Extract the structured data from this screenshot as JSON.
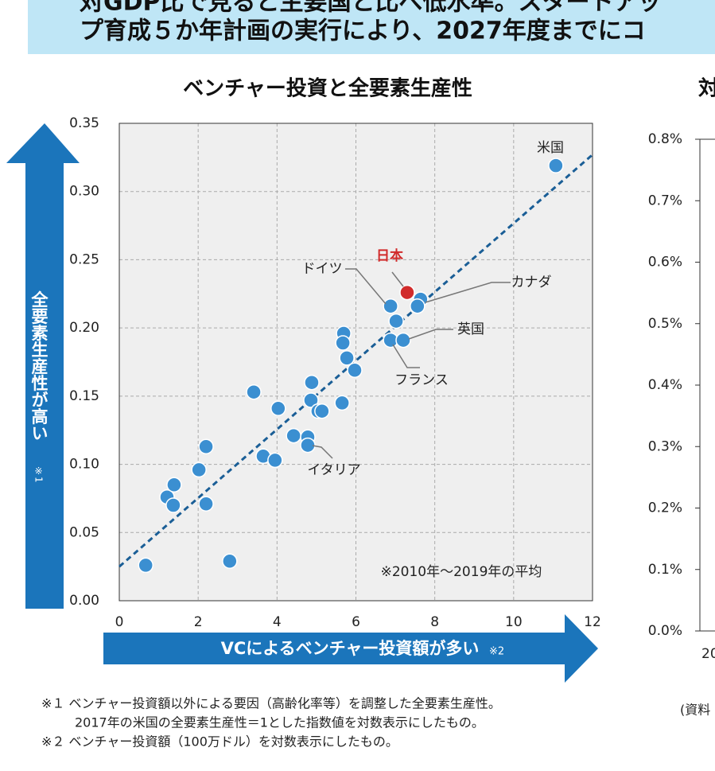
{
  "banner": {
    "lines": [
      "対GDP比で見ると主要国と比べ低水準。スタートアッ",
      "プ育成５か年計画の実行により、2027年度までにコ"
    ]
  },
  "chart_data": [
    {
      "type": "scatter",
      "title": "ベンチャー投資と全要素生産性",
      "y_label": "全要素生産性が高い",
      "y_label_note": "※1",
      "x_label": "VCによるベンチャー投資額が多い",
      "x_label_note": "※2",
      "annotation": "※2010年～2019年の平均",
      "xlim": [
        0,
        12
      ],
      "xticks": [
        0,
        2,
        4,
        6,
        8,
        10,
        12
      ],
      "ylim": [
        0,
        0.35
      ],
      "yticks": [
        {
          "value": 0,
          "label": "0.00"
        },
        {
          "value": 0.05,
          "label": "0.05"
        },
        {
          "value": 0.1,
          "label": "0.10"
        },
        {
          "value": 0.15,
          "label": "0.15"
        },
        {
          "value": 0.2,
          "label": "0.20"
        },
        {
          "value": 0.25,
          "label": "0.25"
        },
        {
          "value": 0.3,
          "label": "0.30"
        },
        {
          "value": 0.35,
          "label": "0.35"
        }
      ],
      "grid": true,
      "trend": {
        "x": [
          0,
          12
        ],
        "values": [
          0.025,
          0.327
        ],
        "color": "#1a5e96"
      },
      "series": [
        {
          "name": "主要国",
          "color": "#3b8fd1",
          "x": [
            0.67,
            2.8,
            1.21,
            1.39,
            1.37,
            2.2,
            2.2,
            2.02,
            3.41,
            3.65,
            3.95,
            4.03,
            4.42,
            4.78,
            4.78,
            4.88,
            4.86,
            5.04,
            5.14,
            5.65,
            5.69,
            5.67,
            5.77,
            5.97,
            6.88,
            7.02,
            6.88,
            7.2,
            7.64,
            7.56,
            11.07
          ],
          "values": [
            0.026,
            0.029,
            0.076,
            0.085,
            0.07,
            0.071,
            0.113,
            0.096,
            0.153,
            0.106,
            0.103,
            0.141,
            0.121,
            0.12,
            0.114,
            0.16,
            0.147,
            0.139,
            0.139,
            0.145,
            0.196,
            0.189,
            0.178,
            0.169,
            0.216,
            0.205,
            0.191,
            0.191,
            0.221,
            0.216,
            0.319
          ],
          "labels": [
            null,
            null,
            null,
            null,
            null,
            null,
            null,
            null,
            null,
            null,
            null,
            null,
            null,
            null,
            "イタリア",
            null,
            null,
            null,
            null,
            null,
            null,
            null,
            null,
            null,
            "ドイツ",
            null,
            "フランス",
            "英国",
            "カナダ",
            null,
            "米国"
          ]
        },
        {
          "name": "日本",
          "color": "#d12b2b",
          "x": [
            7.3
          ],
          "values": [
            0.226
          ]
        }
      ]
    },
    {
      "type": "line",
      "title": "対",
      "ylim": [
        0,
        0.8
      ],
      "yticks": [
        {
          "value": 0,
          "label": "0.0%"
        },
        {
          "value": 0.1,
          "label": "0.1%"
        },
        {
          "value": 0.2,
          "label": "0.2%"
        },
        {
          "value": 0.3,
          "label": "0.3%"
        },
        {
          "value": 0.4,
          "label": "0.4%"
        },
        {
          "value": 0.5,
          "label": "0.5%"
        },
        {
          "value": 0.6,
          "label": "0.6%"
        },
        {
          "value": 0.7,
          "label": "0.7%"
        },
        {
          "value": 0.8,
          "label": "0.8%"
        }
      ],
      "categories": [
        "20"
      ],
      "source": "(資料"
    }
  ],
  "footnotes": [
    "※１ ベンチャー投資額以外による要因（高齢化率等）を調整した全要素生産性。",
    "2017年の米国の全要素生産性＝1とした指数値を対数表示にしたもの。",
    "※２ ベンチャー投資額（100万ドル）を対数表示にしたもの。"
  ]
}
